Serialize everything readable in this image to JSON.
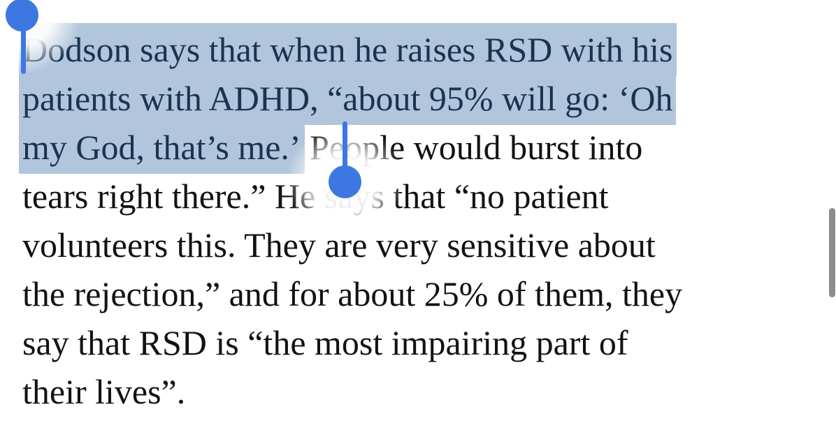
{
  "colors": {
    "selection_highlight": "#b1c5dc",
    "selected_text": "#1a3350",
    "body_text": "#121212",
    "handle_blue": "#3d78e2",
    "scrollbar": "#8d8d8d",
    "background": "#ffffff"
  },
  "article": {
    "full_text": "Dodson says that when he raises RSD with his patients with ADHD, “about 95% will go: ‘Oh my God, that’s me.’ People would burst into tears right there.” He says that “no patient volunteers this. They are very sensitive about the rejection,” and for about 25% of them, they say that RSD is “the most impairing part of their lives”.",
    "lines": [
      {
        "selected_text": "Dodson says that when he raises RSD with his",
        "plain_text": ""
      },
      {
        "selected_text": "patients with ADHD, “about 95% will go: ‘Oh",
        "plain_text": ""
      },
      {
        "selected_text": "my God, that’s me.’",
        "plain_text": " People would burst into"
      },
      {
        "selected_text": "",
        "plain_text": "tears right there.” He says that “no patient"
      },
      {
        "selected_text": "",
        "plain_text": "volunteers this. They are very sensitive about"
      },
      {
        "selected_text": "",
        "plain_text": "the rejection,” and for about 25% of them, they"
      },
      {
        "selected_text": "",
        "plain_text": "say that RSD is “the most impairing part of"
      },
      {
        "selected_text": "",
        "plain_text": "their lives”."
      }
    ]
  },
  "selection": {
    "selected_text": "Dodson says that when he raises RSD with his patients with ADHD, “about 95% will go: ‘Oh my God, that’s me.’"
  }
}
